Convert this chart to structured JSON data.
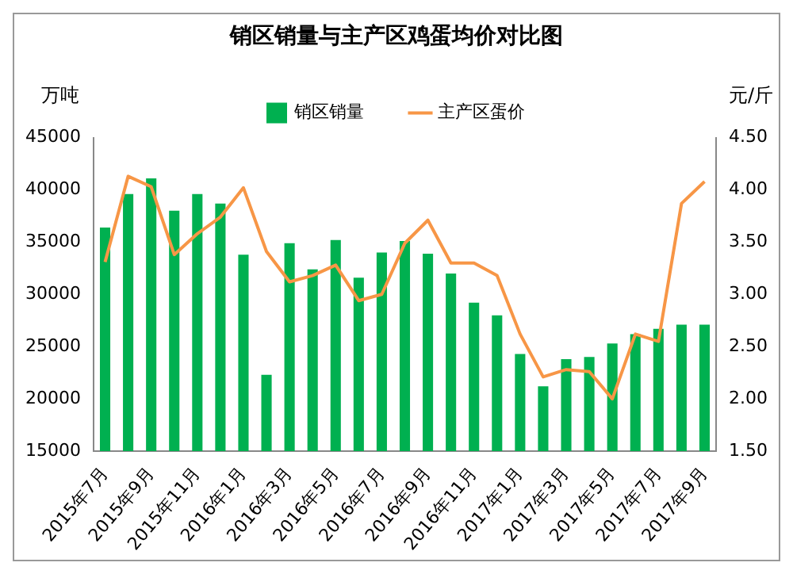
{
  "chart_data": {
    "type": "bar",
    "title": "销区销量与主产区鸡蛋均价对比图",
    "ylabel": "万吨",
    "y2label": "元/斤",
    "categories": [
      "2015年7月",
      null,
      "2015年9月",
      null,
      "2015年11月",
      null,
      "2016年1月",
      null,
      "2016年3月",
      null,
      "2016年5月",
      null,
      "2016年7月",
      null,
      "2016年9月",
      null,
      "2016年11月",
      null,
      "2017年1月",
      null,
      "2017年3月",
      null,
      "2017年5月",
      null,
      "2017年7月",
      null,
      "2017年9月"
    ],
    "series": [
      {
        "name": "销区销量",
        "color": "#00b050",
        "values": [
          36400,
          39600,
          41100,
          38000,
          39600,
          38700,
          33800,
          22300,
          34900,
          32400,
          35200,
          31600,
          34000,
          35100,
          33900,
          32000,
          29200,
          28000,
          24300,
          21200,
          23800,
          24000,
          25300,
          26200,
          26700,
          27100,
          27100
        ]
      },
      {
        "name": "主产区蛋价",
        "type": "line",
        "axis": "y2",
        "color": "#f79646",
        "values": [
          3.31,
          4.13,
          4.03,
          3.38,
          3.58,
          3.74,
          4.02,
          3.41,
          3.12,
          3.18,
          3.28,
          2.94,
          3.0,
          3.49,
          3.71,
          3.3,
          3.3,
          3.18,
          2.62,
          2.21,
          2.28,
          2.26,
          2.0,
          2.62,
          2.55,
          3.87,
          4.08
        ]
      }
    ],
    "ylim": [
      15000,
      45000
    ],
    "yticks": [
      15000,
      20000,
      25000,
      30000,
      35000,
      40000,
      45000
    ],
    "y2lim": [
      1.5,
      4.5
    ],
    "y2ticks": [
      {
        "value": 1.5,
        "label": "1.50"
      },
      {
        "value": 2,
        "label": "2.00"
      },
      {
        "value": 2.5,
        "label": "2.50"
      },
      {
        "value": 3,
        "label": "3.00"
      },
      {
        "value": 3.5,
        "label": "3.50"
      },
      {
        "value": 4,
        "label": "4.00"
      },
      {
        "value": 4.5,
        "label": "4.50"
      }
    ],
    "grid": false,
    "legend": "top",
    "marker": "none",
    "line_style": "solid"
  }
}
